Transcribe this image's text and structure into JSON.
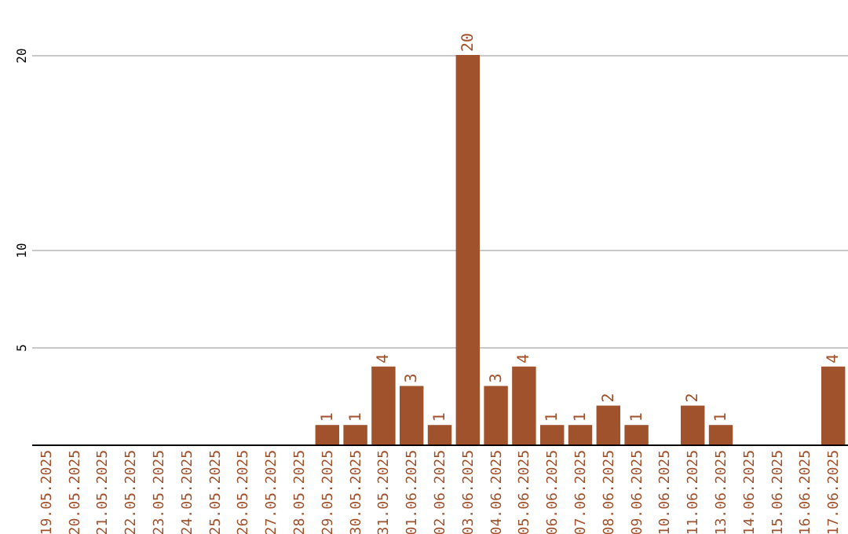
{
  "chart_data": {
    "type": "bar",
    "categories": [
      "19.05.2025",
      "20.05.2025",
      "21.05.2025",
      "22.05.2025",
      "23.05.2025",
      "24.05.2025",
      "25.05.2025",
      "26.05.2025",
      "27.05.2025",
      "28.05.2025",
      "29.05.2025",
      "30.05.2025",
      "31.05.2025",
      "01.06.2025",
      "02.06.2025",
      "03.06.2025",
      "04.06.2025",
      "05.06.2025",
      "06.06.2025",
      "07.06.2025",
      "08.06.2025",
      "09.06.2025",
      "10.06.2025",
      "11.06.2025",
      "13.06.2025",
      "14.06.2025",
      "15.06.2025",
      "16.06.2025",
      "17.06.2025"
    ],
    "values": [
      0,
      0,
      0,
      0,
      0,
      0,
      0,
      0,
      0,
      0,
      1,
      1,
      4,
      3,
      1,
      20,
      3,
      4,
      1,
      1,
      2,
      1,
      0,
      2,
      1,
      0,
      0,
      0,
      4
    ],
    "value_labels": [
      null,
      null,
      null,
      null,
      null,
      null,
      null,
      null,
      null,
      null,
      "1",
      "1",
      "4",
      "3",
      "1",
      "20",
      "3",
      "4",
      "1",
      "1",
      "2",
      "1",
      null,
      "2",
      "1",
      null,
      null,
      null,
      "4"
    ],
    "color": "#a0522d",
    "ylim": [
      0,
      20
    ],
    "yticks": [
      5,
      10,
      20
    ],
    "grid": "y"
  }
}
